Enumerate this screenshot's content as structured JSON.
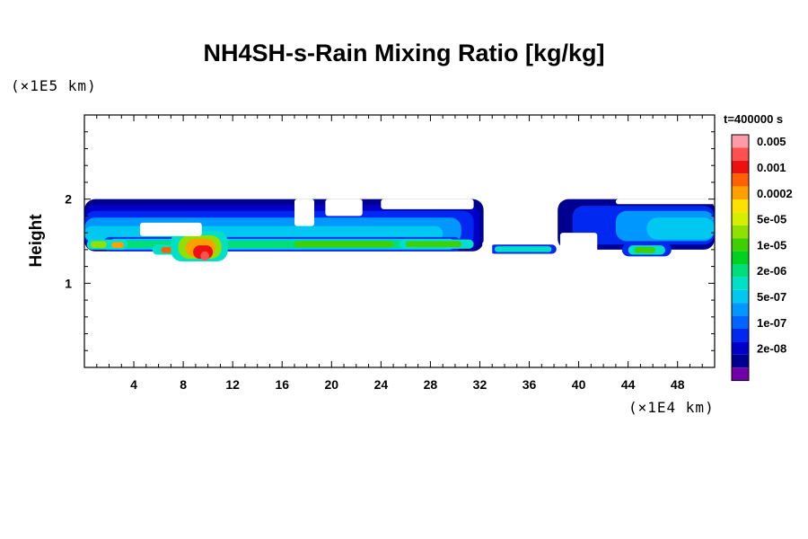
{
  "chart_data": {
    "type": "heatmap",
    "title": "NH4SH-s-Rain Mixing Ratio [kg/kg]",
    "ylabel": "Height",
    "y_unit": "(×1E5 km)",
    "x_unit": "(×1E4 km)",
    "time_label": "t=400000 s",
    "xlim": [
      0,
      51
    ],
    "ylim": [
      0,
      3
    ],
    "x_ticks": [
      4,
      8,
      12,
      16,
      20,
      24,
      28,
      32,
      36,
      40,
      44,
      48
    ],
    "y_ticks": [
      1,
      2
    ],
    "legend": [
      {
        "color": "#ff9aa8",
        "label": "0.005"
      },
      {
        "color": "#ff5050",
        "label": ""
      },
      {
        "color": "#ee1010",
        "label": "0.001"
      },
      {
        "color": "#ff6000",
        "label": ""
      },
      {
        "color": "#ffa000",
        "label": "0.0002"
      },
      {
        "color": "#ffe000",
        "label": ""
      },
      {
        "color": "#d8ee00",
        "label": "5e-05"
      },
      {
        "color": "#90e000",
        "label": ""
      },
      {
        "color": "#40d000",
        "label": "1e-05"
      },
      {
        "color": "#00d020",
        "label": ""
      },
      {
        "color": "#00de7c",
        "label": "2e-06"
      },
      {
        "color": "#00e0c8",
        "label": ""
      },
      {
        "color": "#00c8f0",
        "label": "5e-07"
      },
      {
        "color": "#0098ff",
        "label": ""
      },
      {
        "color": "#0064ff",
        "label": "1e-07"
      },
      {
        "color": "#0028f0",
        "label": ""
      },
      {
        "color": "#0000c8",
        "label": "2e-08"
      },
      {
        "color": "#000090",
        "label": ""
      },
      {
        "color": "#7000a8",
        "label": ""
      }
    ],
    "blobs": [
      {
        "x0": 0,
        "x1": 32.3,
        "y0": 1.38,
        "y1": 2.0,
        "c": 17
      },
      {
        "x0": 0,
        "x1": 32.0,
        "y0": 1.41,
        "y1": 1.93,
        "c": 16
      },
      {
        "x0": 0,
        "x1": 31.5,
        "y0": 1.44,
        "y1": 1.86,
        "c": 15
      },
      {
        "x0": 0,
        "x1": 30.5,
        "y0": 1.47,
        "y1": 1.78,
        "c": 13
      },
      {
        "x0": 0,
        "x1": 29.0,
        "y0": 1.5,
        "y1": 1.68,
        "c": 12
      },
      {
        "x0": 1.5,
        "x1": 30.5,
        "y0": 1.38,
        "y1": 1.55,
        "c": 15
      },
      {
        "x0": 2.0,
        "x1": 30.0,
        "y0": 1.4,
        "y1": 1.53,
        "c": 12
      },
      {
        "x0": 2.5,
        "x1": 29.5,
        "y0": 1.42,
        "y1": 1.51,
        "c": 10
      },
      {
        "x0": 17.0,
        "x1": 25.0,
        "y0": 1.43,
        "y1": 1.5,
        "c": 8
      },
      {
        "x0": 25.5,
        "x1": 31.5,
        "y0": 1.41,
        "y1": 1.52,
        "c": 11
      },
      {
        "x0": 26.0,
        "x1": 30.5,
        "y0": 1.43,
        "y1": 1.5,
        "c": 8
      },
      {
        "x0": 0.2,
        "x1": 3.5,
        "y0": 1.4,
        "y1": 1.52,
        "c": 11
      },
      {
        "x0": 0.5,
        "x1": 1.8,
        "y0": 1.42,
        "y1": 1.5,
        "c": 7
      },
      {
        "x0": 2.2,
        "x1": 3.2,
        "y0": 1.42,
        "y1": 1.49,
        "c": 4
      },
      {
        "x0": 5.5,
        "x1": 8.0,
        "y0": 1.34,
        "y1": 1.46,
        "c": 11
      },
      {
        "x0": 6.2,
        "x1": 7.4,
        "y0": 1.36,
        "y1": 1.43,
        "c": 3
      },
      {
        "x0": 7.0,
        "x1": 11.6,
        "y0": 1.26,
        "y1": 1.62,
        "c": 11
      },
      {
        "x0": 7.6,
        "x1": 11.1,
        "y0": 1.29,
        "y1": 1.57,
        "c": 7
      },
      {
        "x0": 8.2,
        "x1": 10.6,
        "y0": 1.31,
        "y1": 1.53,
        "c": 4
      },
      {
        "x0": 8.8,
        "x1": 10.4,
        "y0": 1.29,
        "y1": 1.45,
        "c": 2
      },
      {
        "x0": 9.4,
        "x1": 10.1,
        "y0": 1.27,
        "y1": 1.38,
        "c": 1
      },
      {
        "x0": 32.8,
        "x1": 38.2,
        "y0": 1.35,
        "y1": 1.46,
        "c": 15
      },
      {
        "x0": 33.2,
        "x1": 37.8,
        "y0": 1.37,
        "y1": 1.44,
        "c": 11
      },
      {
        "x0": 38.3,
        "x1": 51,
        "y0": 1.4,
        "y1": 2.0,
        "c": 17
      },
      {
        "x0": 39.5,
        "x1": 51,
        "y0": 1.46,
        "y1": 1.92,
        "c": 15
      },
      {
        "x0": 43.0,
        "x1": 51,
        "y0": 1.5,
        "y1": 1.86,
        "c": 13
      },
      {
        "x0": 45.5,
        "x1": 51,
        "y0": 1.52,
        "y1": 1.78,
        "c": 12
      },
      {
        "x0": 43.5,
        "x1": 47.5,
        "y0": 1.32,
        "y1": 1.48,
        "c": 15
      },
      {
        "x0": 44.0,
        "x1": 47.0,
        "y0": 1.34,
        "y1": 1.45,
        "c": 11
      },
      {
        "x0": 44.5,
        "x1": 46.2,
        "y0": 1.36,
        "y1": 1.43,
        "c": 8
      }
    ],
    "gaps": [
      {
        "x0": 4.5,
        "x1": 9.5,
        "y0": 1.56,
        "y1": 1.72
      },
      {
        "x0": 17.0,
        "x1": 18.6,
        "y0": 1.68,
        "y1": 2.0
      },
      {
        "x0": 19.5,
        "x1": 22.5,
        "y0": 1.8,
        "y1": 2.0
      },
      {
        "x0": 24.0,
        "x1": 31.5,
        "y0": 1.88,
        "y1": 2.0
      },
      {
        "x0": 32.2,
        "x1": 33.0,
        "y0": 1.3,
        "y1": 1.5
      },
      {
        "x0": 38.5,
        "x1": 41.5,
        "y0": 1.34,
        "y1": 1.6
      },
      {
        "x0": 43.0,
        "x1": 51,
        "y0": 1.94,
        "y1": 2.0
      }
    ]
  }
}
